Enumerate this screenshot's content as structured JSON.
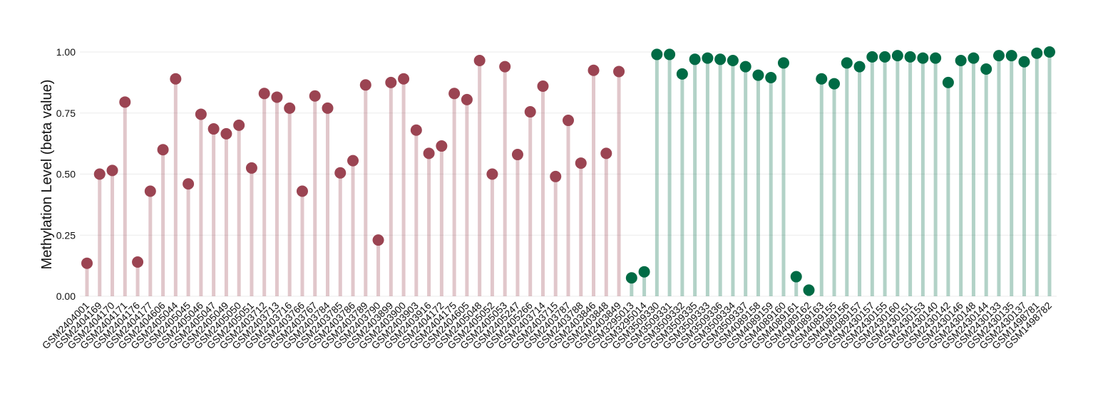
{
  "chart_data": {
    "type": "lollipop",
    "y_label": "Methylation Level (beta value)",
    "categories": [
      "GSM2404001",
      "GSM2404169",
      "GSM2404170",
      "GSM2404171",
      "GSM2404176",
      "GSM2404177",
      "GSM2404606",
      "GSM2405044",
      "GSM2405045",
      "GSM2405046",
      "GSM2405047",
      "GSM2405049",
      "GSM2405050",
      "GSM2405051",
      "GSM2403712",
      "GSM2403713",
      "GSM2403716",
      "GSM2403766",
      "GSM2403767",
      "GSM2403784",
      "GSM2403785",
      "GSM2403786",
      "GSM2403789",
      "GSM2403790",
      "GSM2403899",
      "GSM2403900",
      "GSM2403903",
      "GSM2403916",
      "GSM2404172",
      "GSM2404175",
      "GSM2404605",
      "GSM2405048",
      "GSM2405052",
      "GSM2405053",
      "GSM2405247",
      "GSM2405266",
      "GSM2403714",
      "GSM2403715",
      "GSM2403787",
      "GSM2403788",
      "GSM2403846",
      "GSM2403848",
      "GSM2403849",
      "GSM3295013",
      "GSM3295014",
      "GSM3509330",
      "GSM3509331",
      "GSM3509332",
      "GSM3509335",
      "GSM3509333",
      "GSM3509336",
      "GSM3509334",
      "GSM3509337",
      "GSM4089158",
      "GSM4089159",
      "GSM4089160",
      "GSM4089161",
      "GSM4089162",
      "GSM4089163",
      "GSM4089155",
      "GSM4089156",
      "GSM4089157",
      "GSM2430157",
      "GSM2430155",
      "GSM2430160",
      "GSM2430151",
      "GSM2430153",
      "GSM2430140",
      "GSM2430142",
      "GSM2430146",
      "GSM2430148",
      "GSM2430144",
      "GSM2430133",
      "GSM2430135",
      "GSM2430137",
      "GSM1498781",
      "GSM1498782"
    ],
    "values": [
      0.135,
      0.5,
      0.515,
      0.795,
      0.14,
      0.43,
      0.6,
      0.89,
      0.46,
      0.745,
      0.685,
      0.665,
      0.7,
      0.525,
      0.83,
      0.815,
      0.77,
      0.43,
      0.82,
      0.77,
      0.505,
      0.555,
      0.865,
      0.23,
      0.875,
      0.89,
      0.68,
      0.585,
      0.615,
      0.83,
      0.805,
      0.965,
      0.5,
      0.94,
      0.58,
      0.755,
      0.86,
      0.49,
      0.72,
      0.545,
      0.925,
      0.585,
      0.92,
      0.075,
      0.1,
      0.99,
      0.99,
      0.91,
      0.97,
      0.975,
      0.97,
      0.965,
      0.94,
      0.905,
      0.895,
      0.955,
      0.08,
      0.025,
      0.89,
      0.87,
      0.955,
      0.94,
      0.98,
      0.98,
      0.985,
      0.98,
      0.975,
      0.975,
      0.875,
      0.965,
      0.975,
      0.93,
      0.985,
      0.985,
      0.96,
      0.995,
      1.0
    ],
    "colors": [
      "#9b4452",
      "#9b4452",
      "#9b4452",
      "#9b4452",
      "#9b4452",
      "#9b4452",
      "#9b4452",
      "#9b4452",
      "#9b4452",
      "#9b4452",
      "#9b4452",
      "#9b4452",
      "#9b4452",
      "#9b4452",
      "#9b4452",
      "#9b4452",
      "#9b4452",
      "#9b4452",
      "#9b4452",
      "#9b4452",
      "#9b4452",
      "#9b4452",
      "#9b4452",
      "#9b4452",
      "#9b4452",
      "#9b4452",
      "#9b4452",
      "#9b4452",
      "#9b4452",
      "#9b4452",
      "#9b4452",
      "#9b4452",
      "#9b4452",
      "#9b4452",
      "#9b4452",
      "#9b4452",
      "#9b4452",
      "#9b4452",
      "#9b4452",
      "#9b4452",
      "#9b4452",
      "#9b4452",
      "#9b4452",
      "#006b45",
      "#006b45",
      "#006b45",
      "#006b45",
      "#006b45",
      "#006b45",
      "#006b45",
      "#006b45",
      "#006b45",
      "#006b45",
      "#006b45",
      "#006b45",
      "#006b45",
      "#006b45",
      "#006b45",
      "#006b45",
      "#006b45",
      "#006b45",
      "#006b45",
      "#006b45",
      "#006b45",
      "#006b45",
      "#006b45",
      "#006b45",
      "#006b45",
      "#006b45",
      "#006b45",
      "#006b45",
      "#006b45",
      "#006b45",
      "#006b45",
      "#006b45",
      "#006b45",
      "#006b45"
    ],
    "ylim": [
      0,
      1.0
    ],
    "yticks": [
      {
        "value": 0,
        "label": "0.00"
      },
      {
        "value": 0.25,
        "label": "0.25"
      },
      {
        "value": 0.5,
        "label": "0.50"
      },
      {
        "value": 0.75,
        "label": "0.75"
      },
      {
        "value": 1.0,
        "label": "1.00"
      }
    ],
    "grid": true
  }
}
